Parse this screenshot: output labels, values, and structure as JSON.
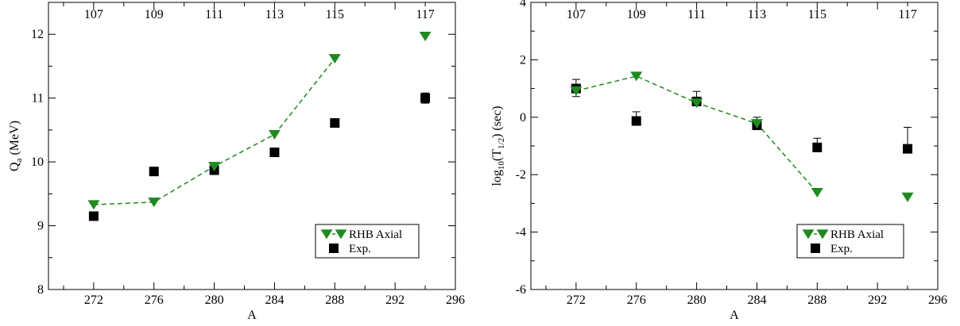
{
  "chart_data": [
    {
      "type": "scatter",
      "xlabel": "A",
      "ylabel_main": "Q",
      "ylabel_sub": "a",
      "ylabel_tail": " (MeV)",
      "xlim": [
        269,
        296
      ],
      "ylim": [
        8,
        12.5
      ],
      "xticks": [
        272,
        276,
        280,
        284,
        288,
        292,
        296
      ],
      "yticks": [
        8,
        9,
        10,
        11,
        12
      ],
      "top_labels": [
        {
          "x": 272,
          "text": "107"
        },
        {
          "x": 276,
          "text": "109"
        },
        {
          "x": 280,
          "text": "111"
        },
        {
          "x": 284,
          "text": "113"
        },
        {
          "x": 288,
          "text": "115"
        },
        {
          "x": 294,
          "text": "117"
        }
      ],
      "series": [
        {
          "name": "RHB Axial",
          "marker": "triangle-down",
          "color": "#1f8a1f",
          "line": "dashed",
          "x": [
            272,
            276,
            280,
            284,
            288,
            294
          ],
          "y": [
            9.33,
            9.37,
            9.93,
            10.43,
            11.62,
            11.97
          ],
          "connect_count": 5
        },
        {
          "name": "Exp.",
          "marker": "square",
          "color": "#000000",
          "line": "none",
          "x": [
            272,
            276,
            280,
            284,
            288,
            294
          ],
          "y": [
            9.15,
            9.85,
            9.87,
            10.15,
            10.61,
            11.0
          ],
          "err": [
            0,
            0,
            0,
            0,
            0,
            0.08
          ]
        }
      ],
      "legend_position": "bottom-right"
    },
    {
      "type": "scatter",
      "xlabel": "A",
      "ylabel_main": "log",
      "ylabel_sub1": "10",
      "ylabel_mid": "(T",
      "ylabel_sub2": "1/2",
      "ylabel_tail": ") (sec)",
      "xlim": [
        269,
        296
      ],
      "ylim": [
        -6,
        4
      ],
      "xticks": [
        272,
        276,
        280,
        284,
        288,
        292,
        296
      ],
      "yticks": [
        -6,
        -4,
        -2,
        0,
        2,
        4
      ],
      "top_labels": [
        {
          "x": 272,
          "text": "107"
        },
        {
          "x": 276,
          "text": "109"
        },
        {
          "x": 280,
          "text": "111"
        },
        {
          "x": 284,
          "text": "113"
        },
        {
          "x": 288,
          "text": "115"
        },
        {
          "x": 294,
          "text": "117"
        }
      ],
      "series": [
        {
          "name": "RHB Axial",
          "marker": "triangle-down",
          "color": "#1f8a1f",
          "line": "dashed",
          "x": [
            272,
            276,
            280,
            284,
            288,
            294
          ],
          "y": [
            0.92,
            1.43,
            0.5,
            -0.22,
            -2.62,
            -2.78
          ],
          "connect_count": 5
        },
        {
          "name": "Exp.",
          "marker": "square",
          "color": "#000000",
          "line": "none",
          "x": [
            272,
            276,
            280,
            284,
            288,
            294
          ],
          "y": [
            1.0,
            -0.13,
            0.55,
            -0.28,
            -1.05,
            -1.1
          ],
          "err_up": [
            0.32,
            0.32,
            0.35,
            0.28,
            0.32,
            0.75
          ],
          "err_dn": [
            0.28,
            0.1,
            0.15,
            0.15,
            0.15,
            0.12
          ]
        }
      ],
      "legend_position": "bottom-right"
    }
  ]
}
